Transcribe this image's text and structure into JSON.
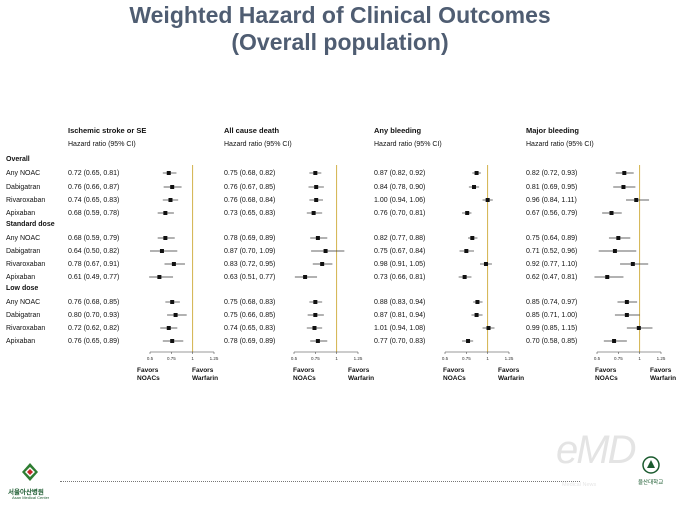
{
  "title": [
    "Weighted Hazard of Clinical Outcomes",
    "(Overall population)"
  ],
  "col_subtitle": "Hazard ratio (95% CI)",
  "groups": [
    {
      "label": "Overall",
      "rows": [
        "Any NOAC",
        "Dabigatran",
        "Rivaroxaban",
        "Apixaban"
      ]
    },
    {
      "label": "Standard dose",
      "rows": [
        "Any NOAC",
        "Dabigatran",
        "Rivaroxaban",
        "Apixaban"
      ]
    },
    {
      "label": "Low dose",
      "rows": [
        "Any NOAC",
        "Dabigatran",
        "Rivaroxaban",
        "Apixaban"
      ]
    }
  ],
  "axis_ticks": [
    "0.5",
    "0.75",
    "1",
    "1.25"
  ],
  "favors_left": [
    "Favors",
    "NOACs"
  ],
  "favors_right": [
    "Favors",
    "Warfarin"
  ],
  "chart_data": [
    {
      "type": "forest",
      "title": "Ischemic stroke or SE",
      "xlim": [
        0.5,
        1.25
      ],
      "reference": 1,
      "rows": [
        {
          "text": "0.72 (0.65, 0.81)",
          "hr": 0.72,
          "lo": 0.65,
          "hi": 0.81
        },
        {
          "text": "0.76 (0.66, 0.87)",
          "hr": 0.76,
          "lo": 0.66,
          "hi": 0.87
        },
        {
          "text": "0.74 (0.65, 0.83)",
          "hr": 0.74,
          "lo": 0.65,
          "hi": 0.83
        },
        {
          "text": "0.68 (0.59, 0.78)",
          "hr": 0.68,
          "lo": 0.59,
          "hi": 0.78
        },
        {
          "text": "0.68 (0.59, 0.79)",
          "hr": 0.68,
          "lo": 0.59,
          "hi": 0.79
        },
        {
          "text": "0.64 (0.50, 0.82)",
          "hr": 0.64,
          "lo": 0.5,
          "hi": 0.82
        },
        {
          "text": "0.78 (0.67, 0.91)",
          "hr": 0.78,
          "lo": 0.67,
          "hi": 0.91
        },
        {
          "text": "0.61 (0.49, 0.77)",
          "hr": 0.61,
          "lo": 0.49,
          "hi": 0.77
        },
        {
          "text": "0.76 (0.68, 0.85)",
          "hr": 0.76,
          "lo": 0.68,
          "hi": 0.85
        },
        {
          "text": "0.80 (0.70, 0.93)",
          "hr": 0.8,
          "lo": 0.7,
          "hi": 0.93
        },
        {
          "text": "0.72 (0.62, 0.82)",
          "hr": 0.72,
          "lo": 0.62,
          "hi": 0.82
        },
        {
          "text": "0.76 (0.65, 0.89)",
          "hr": 0.76,
          "lo": 0.65,
          "hi": 0.89
        }
      ]
    },
    {
      "type": "forest",
      "title": "All cause death",
      "xlim": [
        0.5,
        1.25
      ],
      "reference": 1,
      "rows": [
        {
          "text": "0.75 (0.68, 0.82)",
          "hr": 0.75,
          "lo": 0.68,
          "hi": 0.82
        },
        {
          "text": "0.76 (0.67, 0.85)",
          "hr": 0.76,
          "lo": 0.67,
          "hi": 0.85
        },
        {
          "text": "0.76 (0.68, 0.84)",
          "hr": 0.76,
          "lo": 0.68,
          "hi": 0.84
        },
        {
          "text": "0.73 (0.65, 0.83)",
          "hr": 0.73,
          "lo": 0.65,
          "hi": 0.83
        },
        {
          "text": "0.78 (0.69, 0.89)",
          "hr": 0.78,
          "lo": 0.69,
          "hi": 0.89
        },
        {
          "text": "0.87 (0.70, 1.09)",
          "hr": 0.87,
          "lo": 0.7,
          "hi": 1.09
        },
        {
          "text": "0.83 (0.72, 0.95)",
          "hr": 0.83,
          "lo": 0.72,
          "hi": 0.95
        },
        {
          "text": "0.63 (0.51, 0.77)",
          "hr": 0.63,
          "lo": 0.51,
          "hi": 0.77
        },
        {
          "text": "0.75 (0.68, 0.83)",
          "hr": 0.75,
          "lo": 0.68,
          "hi": 0.83
        },
        {
          "text": "0.75 (0.66, 0.85)",
          "hr": 0.75,
          "lo": 0.66,
          "hi": 0.85
        },
        {
          "text": "0.74 (0.65, 0.83)",
          "hr": 0.74,
          "lo": 0.65,
          "hi": 0.83
        },
        {
          "text": "0.78 (0.69, 0.89)",
          "hr": 0.78,
          "lo": 0.69,
          "hi": 0.89
        }
      ]
    },
    {
      "type": "forest",
      "title": "Any bleeding",
      "xlim": [
        0.5,
        1.25
      ],
      "reference": 1,
      "rows": [
        {
          "text": "0.87 (0.82, 0.92)",
          "hr": 0.87,
          "lo": 0.82,
          "hi": 0.92
        },
        {
          "text": "0.84 (0.78, 0.90)",
          "hr": 0.84,
          "lo": 0.78,
          "hi": 0.9
        },
        {
          "text": "1.00 (0.94, 1.06)",
          "hr": 1.0,
          "lo": 0.94,
          "hi": 1.06
        },
        {
          "text": "0.76 (0.70, 0.81)",
          "hr": 0.76,
          "lo": 0.7,
          "hi": 0.81
        },
        {
          "text": "0.82 (0.77, 0.88)",
          "hr": 0.82,
          "lo": 0.77,
          "hi": 0.88
        },
        {
          "text": "0.75 (0.67, 0.84)",
          "hr": 0.75,
          "lo": 0.67,
          "hi": 0.84
        },
        {
          "text": "0.98 (0.91, 1.05)",
          "hr": 0.98,
          "lo": 0.91,
          "hi": 1.05
        },
        {
          "text": "0.73 (0.66, 0.81)",
          "hr": 0.73,
          "lo": 0.66,
          "hi": 0.81
        },
        {
          "text": "0.88 (0.83, 0.94)",
          "hr": 0.88,
          "lo": 0.83,
          "hi": 0.94
        },
        {
          "text": "0.87 (0.81, 0.94)",
          "hr": 0.87,
          "lo": 0.81,
          "hi": 0.94
        },
        {
          "text": "1.01 (0.94, 1.08)",
          "hr": 1.01,
          "lo": 0.94,
          "hi": 1.08
        },
        {
          "text": "0.77 (0.70, 0.83)",
          "hr": 0.77,
          "lo": 0.7,
          "hi": 0.83
        }
      ]
    },
    {
      "type": "forest",
      "title": "Major bleeding",
      "xlim": [
        0.5,
        1.25
      ],
      "reference": 1,
      "rows": [
        {
          "text": "0.82 (0.72, 0.93)",
          "hr": 0.82,
          "lo": 0.72,
          "hi": 0.93
        },
        {
          "text": "0.81 (0.69, 0.95)",
          "hr": 0.81,
          "lo": 0.69,
          "hi": 0.95
        },
        {
          "text": "0.96 (0.84, 1.11)",
          "hr": 0.96,
          "lo": 0.84,
          "hi": 1.11
        },
        {
          "text": "0.67 (0.56, 0.79)",
          "hr": 0.67,
          "lo": 0.56,
          "hi": 0.79
        },
        {
          "text": "0.75 (0.64, 0.89)",
          "hr": 0.75,
          "lo": 0.64,
          "hi": 0.89
        },
        {
          "text": "0.71 (0.52, 0.96)",
          "hr": 0.71,
          "lo": 0.52,
          "hi": 0.96
        },
        {
          "text": "0.92 (0.77, 1.10)",
          "hr": 0.92,
          "lo": 0.77,
          "hi": 1.1
        },
        {
          "text": "0.62 (0.47, 0.81)",
          "hr": 0.62,
          "lo": 0.47,
          "hi": 0.81
        },
        {
          "text": "0.85 (0.74, 0.97)",
          "hr": 0.85,
          "lo": 0.74,
          "hi": 0.97
        },
        {
          "text": "0.85 (0.71, 1.00)",
          "hr": 0.85,
          "lo": 0.71,
          "hi": 1.0
        },
        {
          "text": "0.99 (0.85, 1.15)",
          "hr": 0.99,
          "lo": 0.85,
          "hi": 1.15
        },
        {
          "text": "0.70 (0.58, 0.85)",
          "hr": 0.7,
          "lo": 0.58,
          "hi": 0.85
        }
      ]
    }
  ],
  "footer": {
    "left_logo_name": "서울아산병원",
    "left_logo_sub": "Asan Medical Center",
    "watermark": "eMD",
    "watermark_sub": "Medical News",
    "right_logo_name": "울산대학교"
  },
  "colors": {
    "title": "#4f5d72",
    "reference_line": "#c8a020",
    "logo": "#1a5a2e"
  }
}
